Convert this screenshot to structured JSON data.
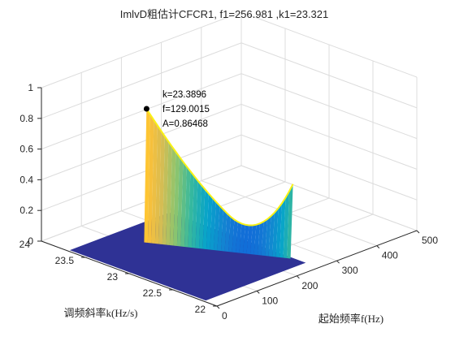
{
  "chart_data": {
    "type": "surface",
    "title": "ImlvD粗估计CFCR1, f1=256.981 ,k1=23.321",
    "xlabel": "起始频率f(Hz)",
    "ylabel": "调频斜率k(Hz/s)",
    "zlabel": "",
    "xlim": [
      0,
      500
    ],
    "ylim": [
      22,
      24
    ],
    "zlim": [
      0,
      1
    ],
    "x_ticks": [
      "0",
      "100",
      "200",
      "300",
      "400",
      "500"
    ],
    "y_ticks": [
      "22",
      "22.5",
      "23",
      "23.5",
      "24"
    ],
    "z_ticks": [
      "0",
      "0.2",
      "0.4",
      "0.6",
      "0.8",
      "1"
    ],
    "grid": true,
    "colormap": "parula",
    "surface_description_values": {
      "ridge_f_start": 129,
      "ridge_f_end": 256,
      "ridge_k_start": 23.39,
      "ridge_k_end": 22.3,
      "ridge_peak": 0.86468,
      "ridge_end_height": 0.48
    },
    "peak_marker": {
      "k": 23.3896,
      "f": 129.0015,
      "A": 0.86468
    },
    "annotation_lines": [
      "k=23.3896",
      "f=129.0015",
      "A=0.86468"
    ]
  }
}
